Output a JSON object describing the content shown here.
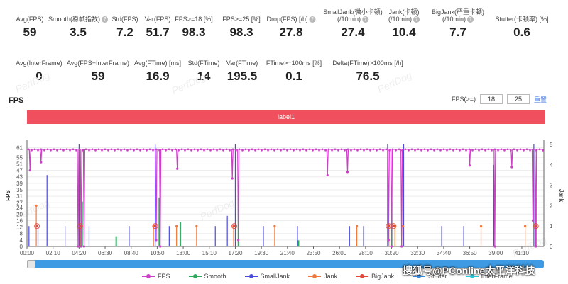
{
  "stats_row1": [
    {
      "label": "Avg(FPS)",
      "value": "59"
    },
    {
      "label": "Smooth(稳帧指数)",
      "value": "3.5",
      "help": true
    },
    {
      "label": "Std(FPS)",
      "value": "7.2"
    },
    {
      "label": "Var(FPS)",
      "value": "51.7"
    },
    {
      "label": "FPS>=18 [%]",
      "value": "98.3"
    },
    {
      "label": "FPS>=25 [%]",
      "value": "98.3"
    },
    {
      "label": "Drop(FPS) [/h]",
      "value": "27.8",
      "help": true
    },
    {
      "label": "SmallJank(微小卡顿)",
      "label2": "(/10min)",
      "value": "27.4",
      "help": true
    },
    {
      "label": "Jank(卡顿)",
      "label2": "(/10min)",
      "value": "10.4",
      "help": true
    },
    {
      "label": "BigJank(严重卡顿)",
      "label2": "(/10min)",
      "value": "7.7",
      "help": true
    },
    {
      "label": "Stutter(卡顿率) [%]",
      "value": "0.6"
    }
  ],
  "stats_row2": [
    {
      "label": "Avg(InterFrame)",
      "value": "0"
    },
    {
      "label": "Avg(FPS+InterFrame)",
      "value": "59"
    },
    {
      "label": "Avg(FTime) [ms]",
      "value": "16.9"
    },
    {
      "label": "Std(FTime)",
      "value": "14"
    },
    {
      "label": "Var(FTime)",
      "value": "195.5"
    },
    {
      "label": "FTime>=100ms [%]",
      "value": "0.1"
    },
    {
      "label": "Delta(FTime)>100ms [/h]",
      "value": "76.5"
    }
  ],
  "watermark_text": "PerfDog",
  "chart": {
    "title": "FPS",
    "fps_threshold_label": "FPS(>=)",
    "threshold1": "18",
    "threshold2": "25",
    "reset_label": "重置",
    "label_bar": "label1"
  },
  "chart_data": {
    "type": "line",
    "x_ticks": [
      "00:00",
      "02:10",
      "04:20",
      "06:30",
      "08:40",
      "10:50",
      "13:00",
      "15:10",
      "17:20",
      "19:30",
      "21:40",
      "23:50",
      "26:00",
      "28:10",
      "30:20",
      "32:30",
      "34:40",
      "36:50",
      "39:00",
      "41:10"
    ],
    "y_left_ticks": [
      0,
      4,
      8,
      12,
      16,
      20,
      24,
      27,
      31,
      35,
      39,
      43,
      47,
      51,
      55,
      61
    ],
    "y_left_label": "FPS",
    "y_left_range": [
      0,
      63
    ],
    "y_right_ticks": [
      0,
      1,
      2,
      3,
      4,
      5
    ],
    "y_right_label": "Jank",
    "y_right_range": [
      0,
      5
    ],
    "fps_baseline": 60,
    "fps_drops": [
      {
        "t": "00:15",
        "fps": 47
      },
      {
        "t": "01:10",
        "fps": 52
      },
      {
        "t": "04:15",
        "fps": 0
      },
      {
        "t": "04:30",
        "fps": 0
      },
      {
        "t": "04:45",
        "fps": 0
      },
      {
        "t": "10:45",
        "fps": 4
      },
      {
        "t": "11:05",
        "fps": 0
      },
      {
        "t": "12:30",
        "fps": 48
      },
      {
        "t": "17:05",
        "fps": 42
      },
      {
        "t": "17:35",
        "fps": 4
      },
      {
        "t": "25:00",
        "fps": 44
      },
      {
        "t": "26:40",
        "fps": 46
      },
      {
        "t": "30:05",
        "fps": 4
      },
      {
        "t": "30:20",
        "fps": 0
      },
      {
        "t": "31:10",
        "fps": 0
      },
      {
        "t": "36:50",
        "fps": 50
      },
      {
        "t": "38:55",
        "fps": 0
      },
      {
        "t": "40:20",
        "fps": 49
      },
      {
        "t": "42:05",
        "fps": 16
      },
      {
        "t": "42:20",
        "fps": 0
      }
    ],
    "smooth_spikes": [
      {
        "t": "04:30",
        "v": 2.2
      },
      {
        "t": "10:55",
        "v": 2.4
      },
      {
        "t": "17:30",
        "v": 2.5
      },
      {
        "t": "30:15",
        "v": 2.2
      },
      {
        "t": "42:15",
        "v": 2.4
      },
      {
        "t": "12:40",
        "v": 1.2
      },
      {
        "t": "07:20",
        "v": 0.5
      },
      {
        "t": "22:30",
        "v": 0.3
      }
    ],
    "smalljank_spikes": [
      {
        "t": "00:10",
        "v": 1
      },
      {
        "t": "00:55",
        "v": 1
      },
      {
        "t": "01:40",
        "v": 3.5
      },
      {
        "t": "03:10",
        "v": 1
      },
      {
        "t": "04:20",
        "v": 5
      },
      {
        "t": "05:10",
        "v": 1
      },
      {
        "t": "08:30",
        "v": 1
      },
      {
        "t": "10:40",
        "v": 5
      },
      {
        "t": "11:50",
        "v": 1
      },
      {
        "t": "15:40",
        "v": 1
      },
      {
        "t": "16:40",
        "v": 1.5
      },
      {
        "t": "17:20",
        "v": 5
      },
      {
        "t": "19:40",
        "v": 1
      },
      {
        "t": "22:30",
        "v": 1
      },
      {
        "t": "26:50",
        "v": 1
      },
      {
        "t": "28:00",
        "v": 1
      },
      {
        "t": "30:00",
        "v": 5
      },
      {
        "t": "31:20",
        "v": 5
      },
      {
        "t": "34:30",
        "v": 1
      },
      {
        "t": "36:20",
        "v": 1
      },
      {
        "t": "38:50",
        "v": 4
      },
      {
        "t": "42:10",
        "v": 5
      }
    ],
    "jank_spikes": [
      {
        "t": "00:50",
        "v": 2
      },
      {
        "t": "04:30",
        "v": 1
      },
      {
        "t": "10:35",
        "v": 1
      },
      {
        "t": "12:30",
        "v": 1
      },
      {
        "t": "14:10",
        "v": 1
      },
      {
        "t": "17:15",
        "v": 1
      },
      {
        "t": "20:40",
        "v": 1
      },
      {
        "t": "27:30",
        "v": 1
      },
      {
        "t": "30:10",
        "v": 1
      },
      {
        "t": "30:40",
        "v": 1
      },
      {
        "t": "31:20",
        "v": 1
      },
      {
        "t": "37:50",
        "v": 1
      },
      {
        "t": "41:30",
        "v": 1
      },
      {
        "t": "42:20",
        "v": 1
      }
    ],
    "bigjank_markers": [
      {
        "t": "00:50",
        "v": 1
      },
      {
        "t": "04:25",
        "v": 1
      },
      {
        "t": "10:40",
        "v": 1
      },
      {
        "t": "17:15",
        "v": 1
      },
      {
        "t": "30:05",
        "v": 1
      },
      {
        "t": "30:30",
        "v": 1
      },
      {
        "t": "42:20",
        "v": 1
      }
    ],
    "legend": [
      "FPS",
      "Smooth",
      "SmallJank",
      "Jank",
      "BigJank",
      "Stutter",
      "InterFrame"
    ],
    "colors": {
      "FPS": "#cc3fc6",
      "Smooth": "#2eaa5c",
      "SmallJank": "#4a4adf",
      "Jank": "#f27a3c",
      "BigJank": "#e0483c",
      "Stutter": "#3c8ee0",
      "InterFrame": "#2ec7d8"
    }
  },
  "credit_text": "搜狐号@PConline太平洋科技"
}
